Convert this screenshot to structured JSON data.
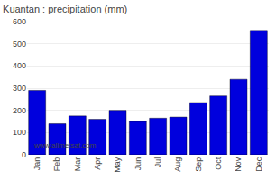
{
  "chart_data": {
    "type": "bar",
    "title": "Kuantan : precipitation (mm)",
    "categories": [
      "Jan",
      "Feb",
      "Mar",
      "Apr",
      "May",
      "Jun",
      "Jul",
      "Aug",
      "Sep",
      "Oct",
      "Nov",
      "Dec"
    ],
    "values": [
      290,
      140,
      175,
      160,
      200,
      150,
      165,
      170,
      235,
      265,
      340,
      560
    ],
    "color": "#0000dd",
    "ylim": [
      0,
      600
    ],
    "yticks": [
      0,
      100,
      200,
      300,
      400,
      500,
      600
    ],
    "grid": true,
    "annotations": [
      "www.allmetsat.com"
    ]
  }
}
